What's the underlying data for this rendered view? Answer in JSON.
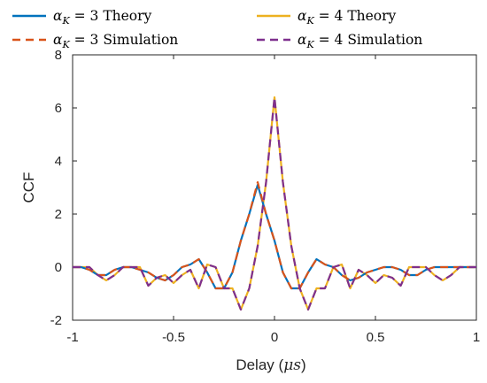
{
  "chart_data": {
    "type": "line",
    "xlabel": "Delay (μs)",
    "ylabel": "CCF",
    "xlim": [
      -1,
      1
    ],
    "ylim": [
      -2,
      8
    ],
    "xticks": [
      -1,
      -0.5,
      0,
      0.5,
      1
    ],
    "xtick_labels": [
      "-1",
      "-0.5",
      "0",
      "0.5",
      "1"
    ],
    "yticks": [
      -2,
      0,
      2,
      4,
      6,
      8
    ],
    "ytick_labels": [
      "-2",
      "0",
      "2",
      "4",
      "6",
      "8"
    ],
    "grid": false,
    "legend_position": "top",
    "series": [
      {
        "name": "α_K = 3 Theory",
        "color": "#0072BD",
        "style": "solid",
        "x": [
          -1.0,
          -0.9583,
          -0.9167,
          -0.875,
          -0.8333,
          -0.7917,
          -0.75,
          -0.7083,
          -0.6667,
          -0.625,
          -0.5833,
          -0.5417,
          -0.5,
          -0.4583,
          -0.4167,
          -0.375,
          -0.3333,
          -0.2917,
          -0.25,
          -0.2083,
          -0.1667,
          -0.125,
          -0.0833,
          -0.0417,
          0.0,
          0.0417,
          0.0833,
          0.125,
          0.1667,
          0.2083,
          0.25,
          0.2917,
          0.3333,
          0.375,
          0.4167,
          0.4583,
          0.5,
          0.5417,
          0.5833,
          0.625,
          0.6667,
          0.7083,
          0.75,
          0.7917,
          0.8333,
          0.875,
          0.9167,
          0.9583,
          1.0
        ],
        "y": [
          0.0,
          0.0,
          -0.1,
          -0.3,
          -0.3,
          -0.1,
          0.0,
          0.0,
          -0.1,
          -0.2,
          -0.4,
          -0.5,
          -0.3,
          0.0,
          0.1,
          0.3,
          -0.2,
          -0.8,
          -0.8,
          -0.2,
          1.0,
          2.0,
          3.1,
          2.0,
          1.0,
          -0.2,
          -0.8,
          -0.8,
          -0.2,
          0.3,
          0.1,
          0.0,
          -0.3,
          -0.5,
          -0.4,
          -0.2,
          -0.1,
          0.0,
          0.0,
          -0.1,
          -0.3,
          -0.3,
          -0.1,
          0.0,
          0.0,
          0.0,
          0.0,
          0.0,
          0.0
        ]
      },
      {
        "name": "α_K = 4 Theory",
        "color": "#EDB120",
        "style": "solid",
        "x": [
          -1.0,
          -0.9583,
          -0.9167,
          -0.875,
          -0.8333,
          -0.7917,
          -0.75,
          -0.7083,
          -0.6667,
          -0.625,
          -0.5833,
          -0.5417,
          -0.5,
          -0.4583,
          -0.4167,
          -0.375,
          -0.3333,
          -0.2917,
          -0.25,
          -0.2083,
          -0.1667,
          -0.125,
          -0.0833,
          -0.0417,
          0.0,
          0.0417,
          0.0833,
          0.125,
          0.1667,
          0.2083,
          0.25,
          0.2917,
          0.3333,
          0.375,
          0.4167,
          0.4583,
          0.5,
          0.5417,
          0.5833,
          0.625,
          0.6667,
          0.7083,
          0.75,
          0.7917,
          0.8333,
          0.875,
          0.9167,
          0.9583,
          1.0
        ],
        "y": [
          0.0,
          0.0,
          0.0,
          -0.3,
          -0.5,
          -0.3,
          0.0,
          0.0,
          0.0,
          -0.7,
          -0.4,
          -0.3,
          -0.6,
          -0.3,
          -0.1,
          -0.8,
          0.1,
          0.0,
          -0.8,
          -0.8,
          -1.6,
          -0.8,
          0.8,
          3.2,
          6.4,
          3.2,
          0.8,
          -0.8,
          -1.6,
          -0.8,
          -0.8,
          0.0,
          0.1,
          -0.8,
          -0.1,
          -0.3,
          -0.6,
          -0.3,
          -0.4,
          -0.7,
          0.0,
          0.0,
          0.0,
          -0.3,
          -0.5,
          -0.3,
          0.0,
          0.0,
          0.0
        ]
      },
      {
        "name": "α_K = 3 Simulation",
        "color": "#D95319",
        "style": "dashed",
        "x": [
          -1.0,
          -0.9583,
          -0.9167,
          -0.875,
          -0.8333,
          -0.7917,
          -0.75,
          -0.7083,
          -0.6667,
          -0.625,
          -0.5833,
          -0.5417,
          -0.5,
          -0.4583,
          -0.4167,
          -0.375,
          -0.3333,
          -0.2917,
          -0.25,
          -0.2083,
          -0.1667,
          -0.125,
          -0.0833,
          -0.0417,
          0.0,
          0.0417,
          0.0833,
          0.125,
          0.1667,
          0.2083,
          0.25,
          0.2917,
          0.3333,
          0.375,
          0.4167,
          0.4583,
          0.5,
          0.5417,
          0.5833,
          0.625,
          0.6667,
          0.7083,
          0.75,
          0.7917,
          0.8333,
          0.875,
          0.9167,
          0.9583,
          1.0
        ],
        "y": [
          0.0,
          0.0,
          -0.1,
          -0.3,
          -0.3,
          -0.1,
          0.0,
          0.0,
          -0.1,
          -0.2,
          -0.4,
          -0.5,
          -0.3,
          0.0,
          0.1,
          0.3,
          -0.2,
          -0.8,
          -0.8,
          -0.2,
          1.0,
          2.0,
          3.2,
          2.0,
          1.0,
          -0.2,
          -0.8,
          -0.8,
          -0.2,
          0.3,
          0.1,
          0.0,
          -0.3,
          -0.5,
          -0.4,
          -0.2,
          -0.1,
          0.0,
          0.0,
          -0.1,
          -0.3,
          -0.3,
          -0.1,
          0.0,
          0.0,
          0.0,
          0.0,
          0.0,
          0.0
        ]
      },
      {
        "name": "α_K = 4 Simulation",
        "color": "#7E2F8E",
        "style": "dashed",
        "x": [
          -1.0,
          -0.9583,
          -0.9167,
          -0.875,
          -0.8333,
          -0.7917,
          -0.75,
          -0.7083,
          -0.6667,
          -0.625,
          -0.5833,
          -0.5417,
          -0.5,
          -0.4583,
          -0.4167,
          -0.375,
          -0.3333,
          -0.2917,
          -0.25,
          -0.2083,
          -0.1667,
          -0.125,
          -0.0833,
          -0.0417,
          0.0,
          0.0417,
          0.0833,
          0.125,
          0.1667,
          0.2083,
          0.25,
          0.2917,
          0.3333,
          0.375,
          0.4167,
          0.4583,
          0.5,
          0.5417,
          0.5833,
          0.625,
          0.6667,
          0.7083,
          0.75,
          0.7917,
          0.8333,
          0.875,
          0.9167,
          0.9583,
          1.0
        ],
        "y": [
          0.0,
          0.0,
          0.0,
          -0.3,
          -0.5,
          -0.3,
          0.0,
          0.0,
          0.0,
          -0.7,
          -0.4,
          -0.3,
          -0.6,
          -0.3,
          -0.1,
          -0.8,
          0.1,
          0.0,
          -0.8,
          -0.8,
          -1.6,
          -0.8,
          0.8,
          3.2,
          6.4,
          3.2,
          0.8,
          -0.8,
          -1.6,
          -0.8,
          -0.8,
          0.0,
          0.1,
          -0.8,
          -0.1,
          -0.3,
          -0.6,
          -0.3,
          -0.4,
          -0.7,
          0.0,
          0.0,
          0.0,
          -0.3,
          -0.5,
          -0.3,
          0.0,
          0.0,
          0.0
        ]
      }
    ]
  }
}
